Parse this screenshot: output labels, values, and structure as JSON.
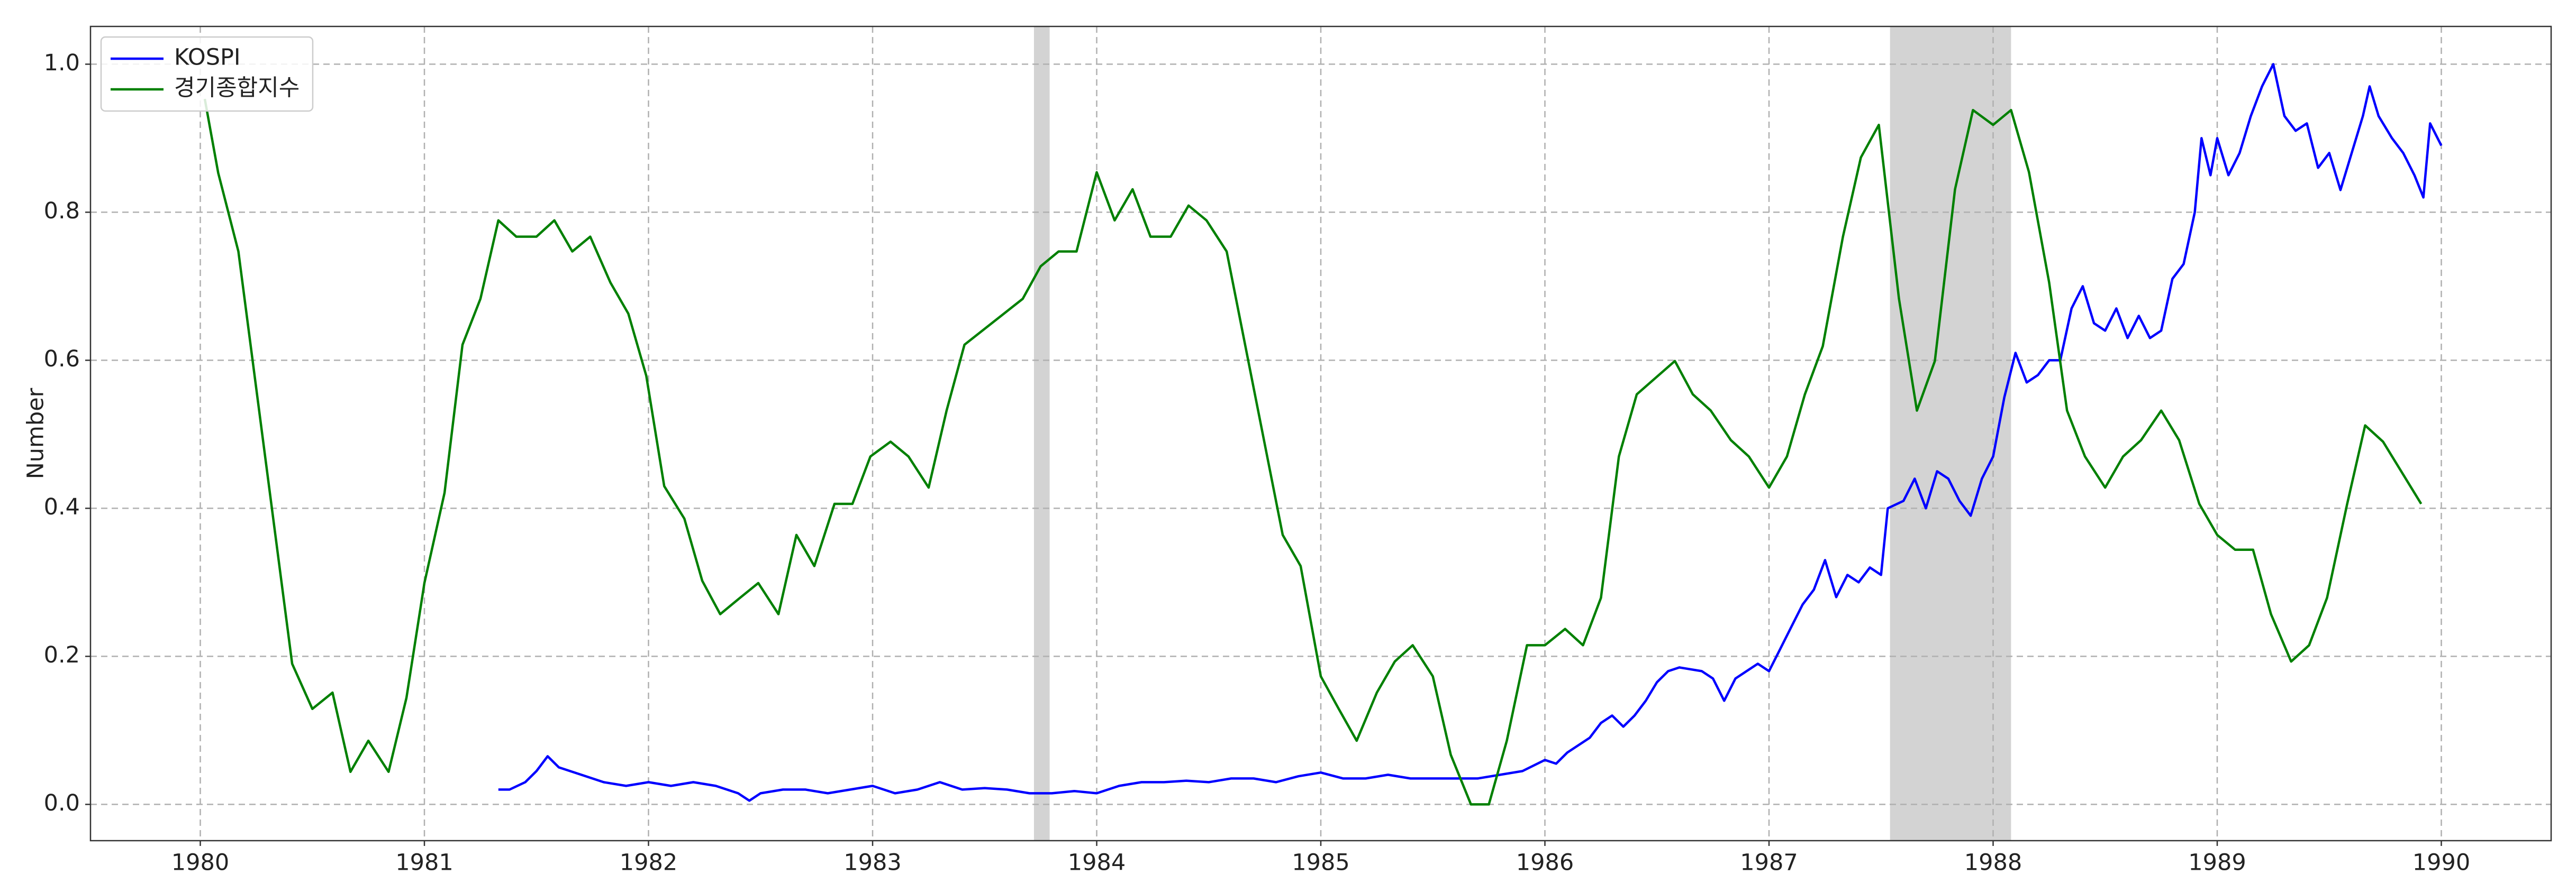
{
  "chart_data": {
    "type": "line",
    "y_label": "Number",
    "xlim": [
      1979.51,
      1990.49
    ],
    "ylim": [
      -0.049,
      1.051
    ],
    "xticks": [
      1980,
      1981,
      1982,
      1983,
      1984,
      1985,
      1986,
      1987,
      1988,
      1989,
      1990
    ],
    "yticks": [
      {
        "value": 0,
        "label": "0.0"
      },
      0.2,
      0.4,
      0.6,
      0.8,
      {
        "value": 1,
        "label": "1.0"
      }
    ],
    "grid": true,
    "legend": "upper left",
    "shaded_spans": [
      [
        1983.72,
        1983.79
      ],
      [
        1987.54,
        1988.08
      ]
    ],
    "shade_color": "#d3d3d3",
    "series": [
      {
        "name": "KOSPI",
        "color": "#0000ff",
        "x": [
          1981.33,
          1981.38,
          1981.45,
          1981.5,
          1981.55,
          1981.6,
          1981.7,
          1981.8,
          1981.9,
          1982.0,
          1982.1,
          1982.2,
          1982.3,
          1982.4,
          1982.45,
          1982.5,
          1982.6,
          1982.7,
          1982.8,
          1982.9,
          1983.0,
          1983.1,
          1983.2,
          1983.3,
          1983.4,
          1983.5,
          1983.6,
          1983.7,
          1983.8,
          1983.9,
          1984.0,
          1984.1,
          1984.2,
          1984.3,
          1984.4,
          1984.5,
          1984.6,
          1984.7,
          1984.8,
          1984.9,
          1985.0,
          1985.1,
          1985.2,
          1985.3,
          1985.4,
          1985.5,
          1985.6,
          1985.7,
          1985.8,
          1985.9,
          1986.0,
          1986.05,
          1986.1,
          1986.2,
          1986.25,
          1986.3,
          1986.35,
          1986.4,
          1986.45,
          1986.5,
          1986.55,
          1986.6,
          1986.7,
          1986.75,
          1986.8,
          1986.85,
          1986.9,
          1986.95,
          1987.0,
          1987.05,
          1987.1,
          1987.15,
          1987.2,
          1987.25,
          1987.3,
          1987.35,
          1987.4,
          1987.45,
          1987.5,
          1987.53,
          1987.6,
          1987.65,
          1987.7,
          1987.75,
          1987.8,
          1987.85,
          1987.9,
          1987.95,
          1988.0,
          1988.05,
          1988.1,
          1988.15,
          1988.2,
          1988.25,
          1988.3,
          1988.35,
          1988.4,
          1988.45,
          1988.5,
          1988.55,
          1988.6,
          1988.65,
          1988.7,
          1988.75,
          1988.8,
          1988.85,
          1988.9,
          1988.93,
          1988.97,
          1989.0,
          1989.05,
          1989.1,
          1989.15,
          1989.2,
          1989.25,
          1989.3,
          1989.35,
          1989.4,
          1989.45,
          1989.5,
          1989.55,
          1989.6,
          1989.65,
          1989.68,
          1989.72,
          1989.78,
          1989.83,
          1989.88,
          1989.92,
          1989.95,
          1990.0
        ],
        "values": [
          0.02,
          0.02,
          0.03,
          0.045,
          0.065,
          0.05,
          0.04,
          0.03,
          0.025,
          0.03,
          0.025,
          0.03,
          0.025,
          0.015,
          0.005,
          0.015,
          0.02,
          0.02,
          0.015,
          0.02,
          0.025,
          0.015,
          0.02,
          0.03,
          0.02,
          0.022,
          0.02,
          0.015,
          0.015,
          0.018,
          0.015,
          0.025,
          0.03,
          0.03,
          0.032,
          0.03,
          0.035,
          0.035,
          0.03,
          0.038,
          0.043,
          0.035,
          0.035,
          0.04,
          0.035,
          0.035,
          0.035,
          0.035,
          0.04,
          0.045,
          0.06,
          0.055,
          0.07,
          0.09,
          0.11,
          0.12,
          0.105,
          0.12,
          0.14,
          0.165,
          0.18,
          0.185,
          0.18,
          0.17,
          0.14,
          0.17,
          0.18,
          0.19,
          0.18,
          0.21,
          0.24,
          0.27,
          0.29,
          0.33,
          0.28,
          0.31,
          0.3,
          0.32,
          0.31,
          0.4,
          0.41,
          0.44,
          0.4,
          0.45,
          0.44,
          0.41,
          0.39,
          0.44,
          0.47,
          0.55,
          0.61,
          0.57,
          0.58,
          0.6,
          0.6,
          0.67,
          0.7,
          0.65,
          0.64,
          0.67,
          0.63,
          0.66,
          0.63,
          0.64,
          0.71,
          0.73,
          0.8,
          0.9,
          0.85,
          0.9,
          0.85,
          0.88,
          0.93,
          0.97,
          1.0,
          0.93,
          0.91,
          0.92,
          0.86,
          0.88,
          0.83,
          0.88,
          0.93,
          0.97,
          0.93,
          0.9,
          0.88,
          0.85,
          0.82,
          0.92,
          0.89
        ]
      },
      {
        "name": "경기종합지수",
        "color": "#008000",
        "x": [
          1980.02,
          1980.08,
          1980.17,
          1980.41,
          1980.5,
          1980.59,
          1980.67,
          1980.75,
          1980.84,
          1980.92,
          1981.0,
          1981.09,
          1981.17,
          1981.25,
          1981.33,
          1981.41,
          1981.5,
          1981.58,
          1981.66,
          1981.74,
          1981.83,
          1981.91,
          1981.99,
          1982.07,
          1982.16,
          1982.24,
          1982.32,
          1982.4,
          1982.49,
          1982.58,
          1982.66,
          1982.74,
          1982.83,
          1982.91,
          1982.99,
          1983.08,
          1983.16,
          1983.25,
          1983.33,
          1983.41,
          1983.67,
          1983.75,
          1983.83,
          1983.91,
          1984.0,
          1984.08,
          1984.16,
          1984.24,
          1984.33,
          1984.41,
          1984.49,
          1984.58,
          1984.83,
          1984.91,
          1985.0,
          1985.08,
          1985.16,
          1985.25,
          1985.33,
          1985.41,
          1985.5,
          1985.58,
          1985.67,
          1985.75,
          1985.83,
          1985.92,
          1986.0,
          1986.09,
          1986.17,
          1986.25,
          1986.33,
          1986.41,
          1986.58,
          1986.66,
          1986.74,
          1986.83,
          1986.91,
          1987.0,
          1987.08,
          1987.16,
          1987.24,
          1987.33,
          1987.41,
          1987.49,
          1987.58,
          1987.66,
          1987.74,
          1987.83,
          1987.91,
          1988.0,
          1988.08,
          1988.16,
          1988.25,
          1988.33,
          1988.41,
          1988.5,
          1988.58,
          1988.66,
          1988.75,
          1988.83,
          1988.92,
          1989.0,
          1989.08,
          1989.16,
          1989.24,
          1989.33,
          1989.41,
          1989.49,
          1989.58,
          1989.66,
          1989.74,
          1989.91
        ],
        "values": [
          0.953,
          0.853,
          0.747,
          0.19,
          0.129,
          0.151,
          0.044,
          0.086,
          0.044,
          0.144,
          0.299,
          0.421,
          0.621,
          0.683,
          0.789,
          0.767,
          0.767,
          0.789,
          0.747,
          0.767,
          0.705,
          0.663,
          0.579,
          0.43,
          0.386,
          0.302,
          0.257,
          0.277,
          0.299,
          0.257,
          0.364,
          0.322,
          0.406,
          0.406,
          0.47,
          0.49,
          0.47,
          0.428,
          0.532,
          0.621,
          0.683,
          0.727,
          0.747,
          0.747,
          0.854,
          0.789,
          0.831,
          0.767,
          0.767,
          0.809,
          0.789,
          0.747,
          0.364,
          0.322,
          0.173,
          0.129,
          0.086,
          0.151,
          0.193,
          0.215,
          0.173,
          0.067,
          0,
          0,
          0.086,
          0.215,
          0.215,
          0.237,
          0.215,
          0.279,
          0.47,
          0.554,
          0.599,
          0.554,
          0.532,
          0.492,
          0.47,
          0.428,
          0.47,
          0.554,
          0.619,
          0.767,
          0.874,
          0.918,
          0.683,
          0.532,
          0.599,
          0.831,
          0.938,
          0.918,
          0.938,
          0.854,
          0.705,
          0.532,
          0.47,
          0.428,
          0.47,
          0.492,
          0.532,
          0.492,
          0.406,
          0.364,
          0.344,
          0.344,
          0.257,
          0.193,
          0.215,
          0.279,
          0.406,
          0.512,
          0.49,
          0.406
        ]
      }
    ]
  }
}
